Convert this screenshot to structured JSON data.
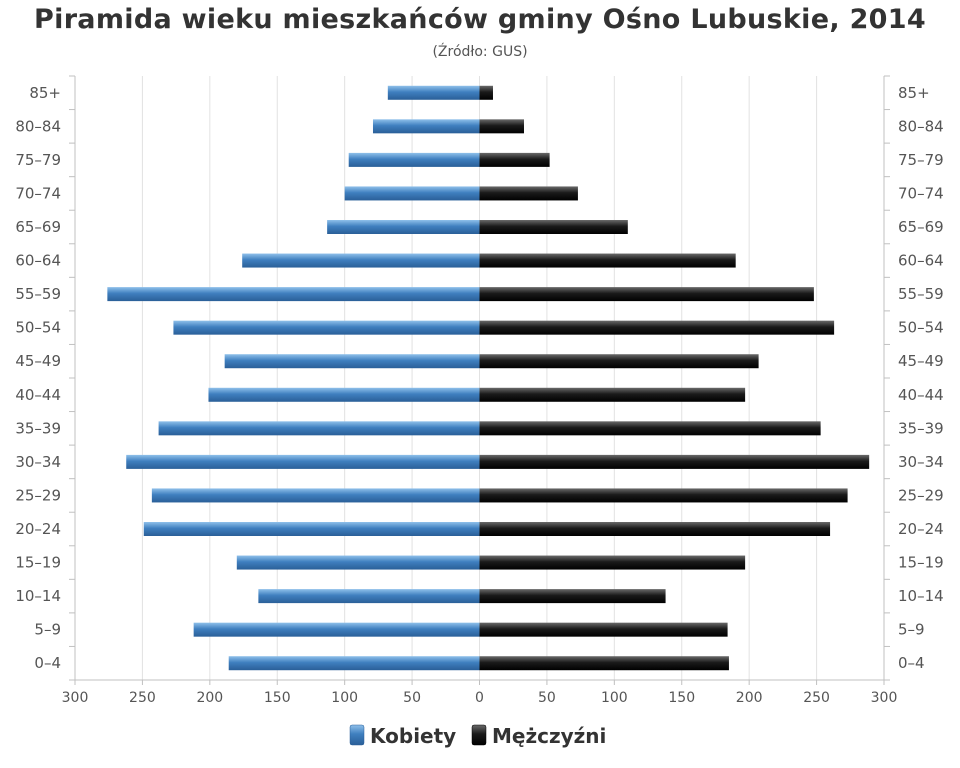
{
  "colors": {
    "female": "#3f7fbf",
    "male": "#1a1a1a",
    "grid": "#e2e2e2",
    "axis": "#c0c0c0",
    "text": "#555555"
  },
  "chart_data": {
    "type": "bar",
    "subtype": "population-pyramid",
    "title": "Piramida wieku mieszkańców gminy Ośno Lubuskie, 2014",
    "subtitle": "(Źródło: GUS)",
    "categories": [
      "85+",
      "80–84",
      "75–79",
      "70–74",
      "65–69",
      "60–64",
      "55–59",
      "50–54",
      "45–49",
      "40–44",
      "35–39",
      "30–34",
      "25–29",
      "20–24",
      "15–19",
      "10–14",
      "5–9",
      "0–4"
    ],
    "series": [
      {
        "name": "Kobiety",
        "side": "left",
        "values": [
          68,
          79,
          97,
          100,
          113,
          176,
          276,
          227,
          189,
          201,
          238,
          262,
          243,
          249,
          180,
          164,
          212,
          186
        ]
      },
      {
        "name": "Mężczyźni",
        "side": "right",
        "values": [
          10,
          33,
          52,
          73,
          110,
          190,
          248,
          263,
          207,
          197,
          253,
          289,
          273,
          260,
          197,
          138,
          184,
          185
        ]
      }
    ],
    "xlim": [
      -300,
      300
    ],
    "xticks": [
      "300",
      "250",
      "200",
      "150",
      "100",
      "50",
      "0",
      "50",
      "100",
      "150",
      "200",
      "250",
      "300"
    ],
    "legend": {
      "position": "bottom-center",
      "entries": [
        "Kobiety",
        "Mężczyźni"
      ]
    },
    "grid": true
  }
}
